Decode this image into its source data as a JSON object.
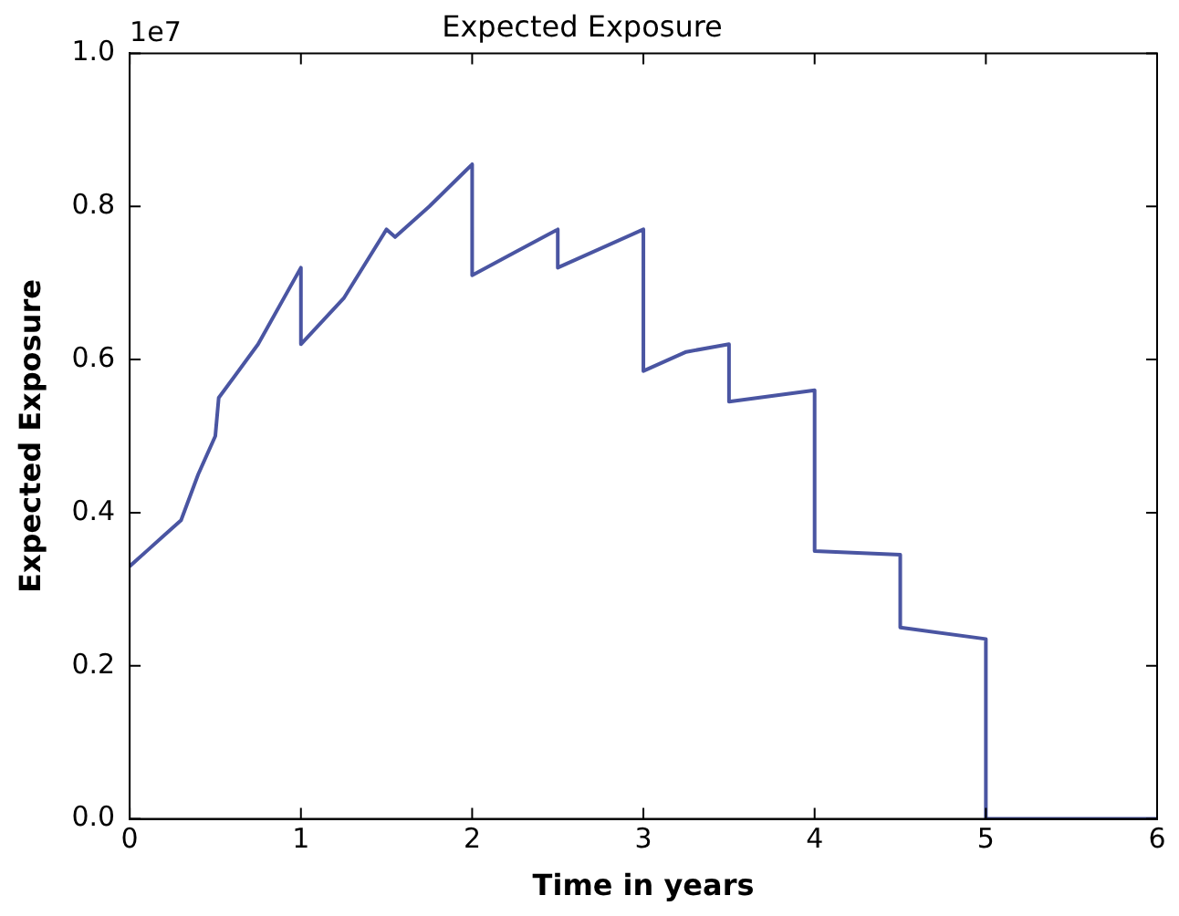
{
  "chart_data": {
    "type": "line",
    "title": "Expected Exposure",
    "xlabel": "Time in years",
    "ylabel": "Expected Exposure",
    "annotations": [
      "1e7"
    ],
    "x": [
      0,
      0.1,
      0.2,
      0.3,
      0.4,
      0.5,
      0.52,
      0.75,
      1.0,
      1.0,
      1.25,
      1.5,
      1.55,
      1.75,
      2.0,
      2.0,
      2.25,
      2.5,
      2.5,
      3.0,
      3.0,
      3.25,
      3.5,
      3.5,
      4.0,
      4.0,
      4.5,
      4.5,
      5.0,
      5.0,
      6.0
    ],
    "series": [
      {
        "color": "#4a55a2",
        "values": [
          0.33,
          0.35,
          0.37,
          0.39,
          0.45,
          0.5,
          0.55,
          0.62,
          0.72,
          0.62,
          0.68,
          0.77,
          0.76,
          0.8,
          0.855,
          0.71,
          0.74,
          0.77,
          0.72,
          0.77,
          0.585,
          0.61,
          0.62,
          0.545,
          0.56,
          0.35,
          0.345,
          0.25,
          0.235,
          0,
          0
        ]
      }
    ],
    "xlim": [
      0,
      6
    ],
    "xticks": [
      0,
      1,
      2,
      3,
      4,
      5,
      6
    ],
    "ylim": [
      0,
      1
    ],
    "yticks": [
      {
        "value": 0,
        "label": "0.0"
      },
      {
        "value": 0.2,
        "label": "0.2"
      },
      {
        "value": 0.4,
        "label": "0.4"
      },
      {
        "value": 0.6,
        "label": "0.6"
      },
      {
        "value": 0.8,
        "label": "0.8"
      },
      {
        "value": 1,
        "label": "1.0"
      }
    ],
    "grid": false,
    "legend": false,
    "marker": "none",
    "line_style": "solid"
  }
}
